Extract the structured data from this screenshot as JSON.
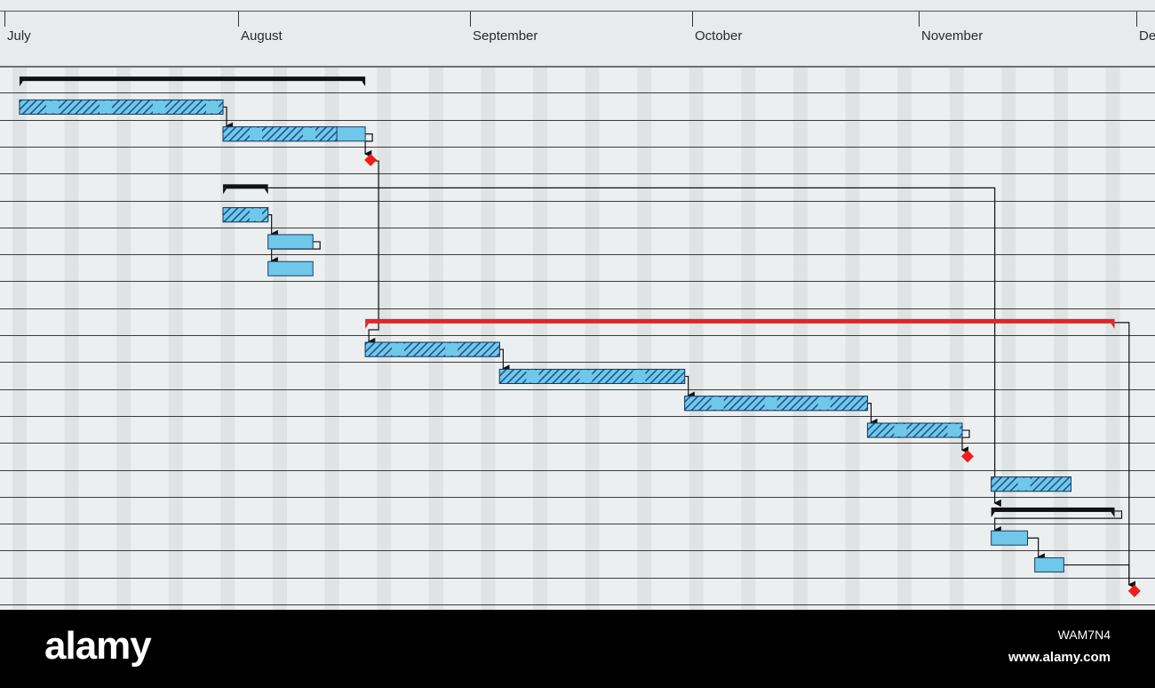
{
  "chart_data": {
    "type": "gantt",
    "timescale": {
      "months": [
        "July",
        "August",
        "September",
        "October",
        "November",
        "De"
      ]
    },
    "grid": true,
    "bars": [
      {
        "row": 0,
        "kind": "summary",
        "start": "2019-07-03",
        "end": "2019-08-18"
      },
      {
        "row": 1,
        "kind": "task",
        "start": "2019-07-03",
        "end": "2019-07-30",
        "progress": 1.0
      },
      {
        "row": 2,
        "kind": "task",
        "start": "2019-07-30",
        "end": "2019-08-18",
        "progress": 0.8
      },
      {
        "row": 3,
        "kind": "milestone",
        "date": "2019-08-18"
      },
      {
        "row": 4,
        "kind": "summary",
        "start": "2019-07-30",
        "end": "2019-08-05"
      },
      {
        "row": 5,
        "kind": "task",
        "start": "2019-07-30",
        "end": "2019-08-05",
        "progress": 1.0
      },
      {
        "row": 6,
        "kind": "task",
        "start": "2019-08-05",
        "end": "2019-08-11",
        "progress": 0
      },
      {
        "row": 7,
        "kind": "task",
        "start": "2019-08-05",
        "end": "2019-08-11",
        "progress": 0
      },
      {
        "row": 9,
        "kind": "critical-summary",
        "start": "2019-08-18",
        "end": "2019-11-28"
      },
      {
        "row": 10,
        "kind": "task",
        "start": "2019-08-18",
        "end": "2019-09-05",
        "progress": 1.0
      },
      {
        "row": 11,
        "kind": "task",
        "start": "2019-09-05",
        "end": "2019-09-30",
        "progress": 1.0
      },
      {
        "row": 12,
        "kind": "task",
        "start": "2019-09-30",
        "end": "2019-10-25",
        "progress": 1.0
      },
      {
        "row": 13,
        "kind": "task",
        "start": "2019-10-25",
        "end": "2019-11-07",
        "progress": 1.0
      },
      {
        "row": 14,
        "kind": "milestone",
        "date": "2019-11-07"
      },
      {
        "row": 15,
        "kind": "task",
        "start": "2019-11-11",
        "end": "2019-11-22",
        "progress": 1.0
      },
      {
        "row": 16,
        "kind": "summary",
        "start": "2019-11-11",
        "end": "2019-11-28"
      },
      {
        "row": 17,
        "kind": "task",
        "start": "2019-11-11",
        "end": "2019-11-16",
        "progress": 0
      },
      {
        "row": 18,
        "kind": "task",
        "start": "2019-11-17",
        "end": "2019-11-21",
        "progress": 0
      },
      {
        "row": 19,
        "kind": "milestone",
        "date": "2019-11-30"
      }
    ],
    "dependencies": [
      [
        1,
        2
      ],
      [
        2,
        3
      ],
      [
        5,
        6
      ],
      [
        6,
        7
      ],
      [
        3,
        10
      ],
      [
        10,
        11
      ],
      [
        11,
        12
      ],
      [
        12,
        13
      ],
      [
        13,
        14
      ],
      [
        4,
        16
      ],
      [
        16,
        17
      ],
      [
        17,
        18
      ],
      [
        18,
        19
      ],
      [
        9,
        19
      ]
    ]
  },
  "colors": {
    "task_fill": "#6fc8ea",
    "hatch": "#1f4f86",
    "critical": "#e02525",
    "milestone": "#f01c1c",
    "summary": "#111111",
    "gridline": "#3b3b3b"
  },
  "footer": {
    "brand": "alamy",
    "image_id": "WAM7N4",
    "url": "www.alamy.com"
  }
}
